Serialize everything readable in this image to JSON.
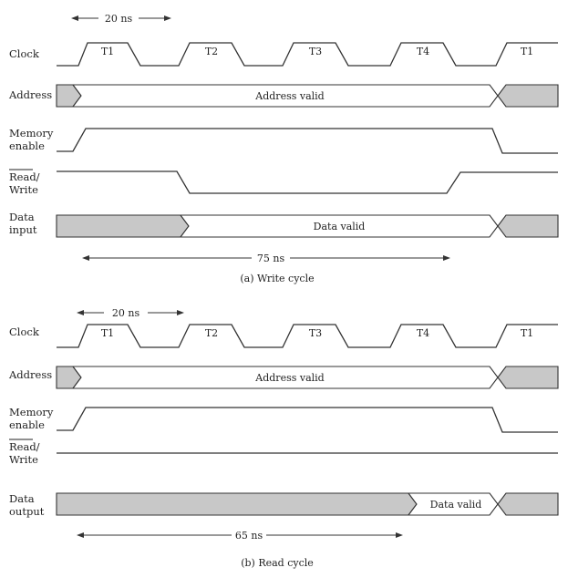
{
  "write_cycle": {
    "period_label": "20 ns",
    "clock_label": "Clock",
    "clock_states": [
      "T1",
      "T2",
      "T3",
      "T4",
      "T1"
    ],
    "address_label": "Address",
    "address_text": "Address valid",
    "mem_enable_label": [
      "Memory",
      "enable"
    ],
    "rw_label": [
      "Read/",
      "Write"
    ],
    "data_label": [
      "Data",
      "input"
    ],
    "data_text": "Data valid",
    "duration_label": "75 ns",
    "caption": "(a) Write cycle"
  },
  "read_cycle": {
    "period_label": "20 ns",
    "clock_label": "Clock",
    "clock_states": [
      "T1",
      "T2",
      "T3",
      "T4",
      "T1"
    ],
    "address_label": "Address",
    "address_text": "Address valid",
    "mem_enable_label": [
      "Memory",
      "enable"
    ],
    "rw_label": [
      "Read/",
      "Write"
    ],
    "data_label": [
      "Data",
      "output"
    ],
    "data_text": "Data valid",
    "duration_label": "65 ns",
    "caption": "(b) Read cycle"
  }
}
